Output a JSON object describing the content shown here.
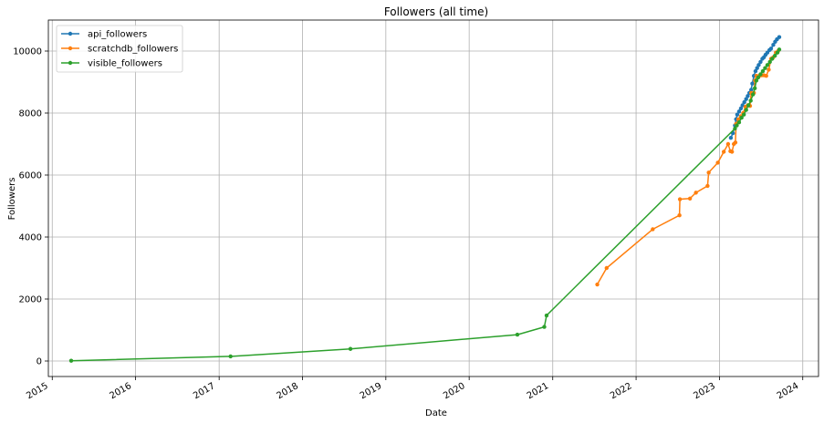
{
  "chart_data": {
    "type": "line",
    "title": "Followers (all time)",
    "xlabel": "Date",
    "ylabel": "Followers",
    "xlim": [
      "2014-12-15",
      "2024-03-10"
    ],
    "ylim": [
      -500,
      11000
    ],
    "x_ticks": [
      "2015",
      "2016",
      "2017",
      "2018",
      "2019",
      "2020",
      "2021",
      "2022",
      "2023",
      "2024"
    ],
    "y_ticks": [
      0,
      2000,
      4000,
      6000,
      8000,
      10000
    ],
    "grid": true,
    "legend_position": "top-left",
    "series": [
      {
        "name": "api_followers",
        "color": "#1f77b4",
        "points": [
          [
            "2023-02-20",
            7200
          ],
          [
            "2023-03-01",
            7350
          ],
          [
            "2023-03-10",
            7600
          ],
          [
            "2023-03-15",
            7800
          ],
          [
            "2023-03-20",
            7950
          ],
          [
            "2023-03-28",
            8050
          ],
          [
            "2023-04-05",
            8150
          ],
          [
            "2023-04-12",
            8250
          ],
          [
            "2023-04-20",
            8350
          ],
          [
            "2023-04-28",
            8450
          ],
          [
            "2023-05-05",
            8550
          ],
          [
            "2023-05-12",
            8650
          ],
          [
            "2023-05-20",
            8750
          ],
          [
            "2023-05-25",
            8950
          ],
          [
            "2023-06-01",
            9200
          ],
          [
            "2023-06-08",
            9350
          ],
          [
            "2023-06-15",
            9450
          ],
          [
            "2023-06-22",
            9550
          ],
          [
            "2023-06-30",
            9650
          ],
          [
            "2023-07-08",
            9750
          ],
          [
            "2023-07-15",
            9800
          ],
          [
            "2023-07-22",
            9880
          ],
          [
            "2023-07-30",
            9950
          ],
          [
            "2023-08-08",
            10030
          ],
          [
            "2023-08-15",
            10080
          ],
          [
            "2023-08-25",
            10200
          ],
          [
            "2023-09-02",
            10300
          ],
          [
            "2023-09-10",
            10380
          ],
          [
            "2023-09-20",
            10450
          ]
        ]
      },
      {
        "name": "scratchdb_followers",
        "color": "#ff7f0e",
        "points": [
          [
            "2021-07-15",
            2470
          ],
          [
            "2021-08-25",
            3000
          ],
          [
            "2022-03-15",
            4250
          ],
          [
            "2022-07-10",
            4700
          ],
          [
            "2022-07-12",
            5220
          ],
          [
            "2022-08-25",
            5240
          ],
          [
            "2022-09-20",
            5430
          ],
          [
            "2022-11-10",
            5650
          ],
          [
            "2022-11-15",
            6080
          ],
          [
            "2022-12-25",
            6400
          ],
          [
            "2023-01-20",
            6750
          ],
          [
            "2023-02-08",
            7000
          ],
          [
            "2023-02-18",
            6770
          ],
          [
            "2023-02-25",
            6750
          ],
          [
            "2023-03-05",
            7000
          ],
          [
            "2023-03-12",
            7050
          ],
          [
            "2023-03-15",
            7650
          ],
          [
            "2023-03-25",
            7800
          ],
          [
            "2023-04-05",
            7900
          ],
          [
            "2023-04-15",
            8000
          ],
          [
            "2023-04-25",
            8200
          ],
          [
            "2023-05-05",
            8250
          ],
          [
            "2023-05-15",
            8230
          ],
          [
            "2023-05-20",
            8650
          ],
          [
            "2023-06-01",
            8650
          ],
          [
            "2023-06-06",
            9050
          ],
          [
            "2023-06-12",
            9200
          ],
          [
            "2023-06-25",
            9200
          ],
          [
            "2023-07-05",
            9220
          ],
          [
            "2023-07-15",
            9220
          ],
          [
            "2023-07-25",
            9200
          ],
          [
            "2023-08-05",
            9400
          ],
          [
            "2023-08-15",
            9750
          ],
          [
            "2023-08-25",
            9800
          ],
          [
            "2023-09-05",
            9950
          ],
          [
            "2023-09-15",
            10000
          ]
        ]
      },
      {
        "name": "visible_followers",
        "color": "#2ca02c",
        "points": [
          [
            "2015-03-25",
            10
          ],
          [
            "2017-02-20",
            150
          ],
          [
            "2018-07-30",
            390
          ],
          [
            "2020-07-30",
            850
          ],
          [
            "2020-11-25",
            1100
          ],
          [
            "2020-12-05",
            1470
          ],
          [
            "2023-03-10",
            7500
          ],
          [
            "2023-03-18",
            7600
          ],
          [
            "2023-03-28",
            7700
          ],
          [
            "2023-04-08",
            7850
          ],
          [
            "2023-04-18",
            7950
          ],
          [
            "2023-04-28",
            8100
          ],
          [
            "2023-05-08",
            8250
          ],
          [
            "2023-05-18",
            8400
          ],
          [
            "2023-05-28",
            8600
          ],
          [
            "2023-06-05",
            8800
          ],
          [
            "2023-06-12",
            9050
          ],
          [
            "2023-06-20",
            9150
          ],
          [
            "2023-06-30",
            9250
          ],
          [
            "2023-07-10",
            9350
          ],
          [
            "2023-07-20",
            9450
          ],
          [
            "2023-07-30",
            9550
          ],
          [
            "2023-08-10",
            9650
          ],
          [
            "2023-08-20",
            9750
          ],
          [
            "2023-09-01",
            9850
          ],
          [
            "2023-09-12",
            9950
          ],
          [
            "2023-09-20",
            10050
          ]
        ]
      }
    ]
  }
}
